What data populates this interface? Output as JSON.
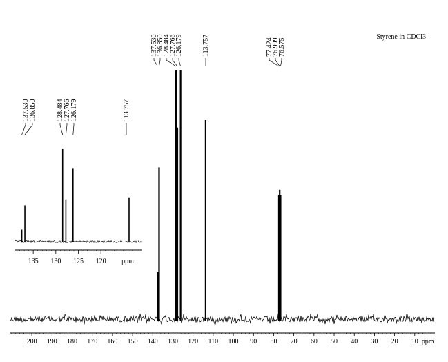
{
  "chart_data": [
    {
      "type": "line",
      "title": "Styrene in CDCl3",
      "x_unit": "ppm",
      "x_axis_reversed": true,
      "xlim": [
        211,
        0
      ],
      "ticks": [
        200,
        190,
        180,
        170,
        160,
        150,
        140,
        130,
        120,
        110,
        100,
        90,
        80,
        70,
        60,
        50,
        40,
        30,
        20,
        10
      ],
      "tick_labels": [
        "200",
        "190",
        "180",
        "170",
        "160",
        "150",
        "140",
        "130",
        "120",
        "110",
        "100",
        "90",
        "80",
        "70",
        "60",
        "50",
        "40",
        "30",
        "20",
        "10"
      ],
      "peaks": [
        {
          "ppm": 137.53,
          "height": 0.19
        },
        {
          "ppm": 136.85,
          "height": 0.61
        },
        {
          "ppm": 128.484,
          "height": 1.0
        },
        {
          "ppm": 127.766,
          "height": 0.77
        },
        {
          "ppm": 126.179,
          "height": 1.0
        },
        {
          "ppm": 113.757,
          "height": 0.8
        },
        {
          "ppm": 77.424,
          "height": 0.5
        },
        {
          "ppm": 76.999,
          "height": 0.52
        },
        {
          "ppm": 76.575,
          "height": 0.5
        }
      ],
      "peak_label_groups": [
        {
          "labels": [
            "137.530",
            "136.850",
            "128.484",
            "127.766",
            "126.179"
          ]
        },
        {
          "labels": [
            "113.757"
          ]
        },
        {
          "labels": [
            "77.424",
            "76.999",
            "76.575"
          ]
        }
      ]
    },
    {
      "type": "line",
      "title": "",
      "x_unit": "ppm",
      "x_axis_reversed": true,
      "xlim": [
        139,
        111
      ],
      "ticks": [
        135,
        130,
        125,
        120
      ],
      "tick_labels": [
        "135",
        "130",
        "125",
        "120"
      ],
      "peaks": [
        {
          "ppm": 137.53,
          "height": 0.12
        },
        {
          "ppm": 136.85,
          "height": 0.36
        },
        {
          "ppm": 128.484,
          "height": 0.92
        },
        {
          "ppm": 127.766,
          "height": 0.42
        },
        {
          "ppm": 126.179,
          "height": 0.73
        },
        {
          "ppm": 113.757,
          "height": 0.44
        }
      ],
      "peak_label_groups": [
        {
          "labels": [
            "137.530",
            "136.850"
          ]
        },
        {
          "labels": [
            "128.484",
            "127.766",
            "126.179"
          ]
        },
        {
          "labels": [
            "113.757"
          ]
        }
      ]
    }
  ]
}
